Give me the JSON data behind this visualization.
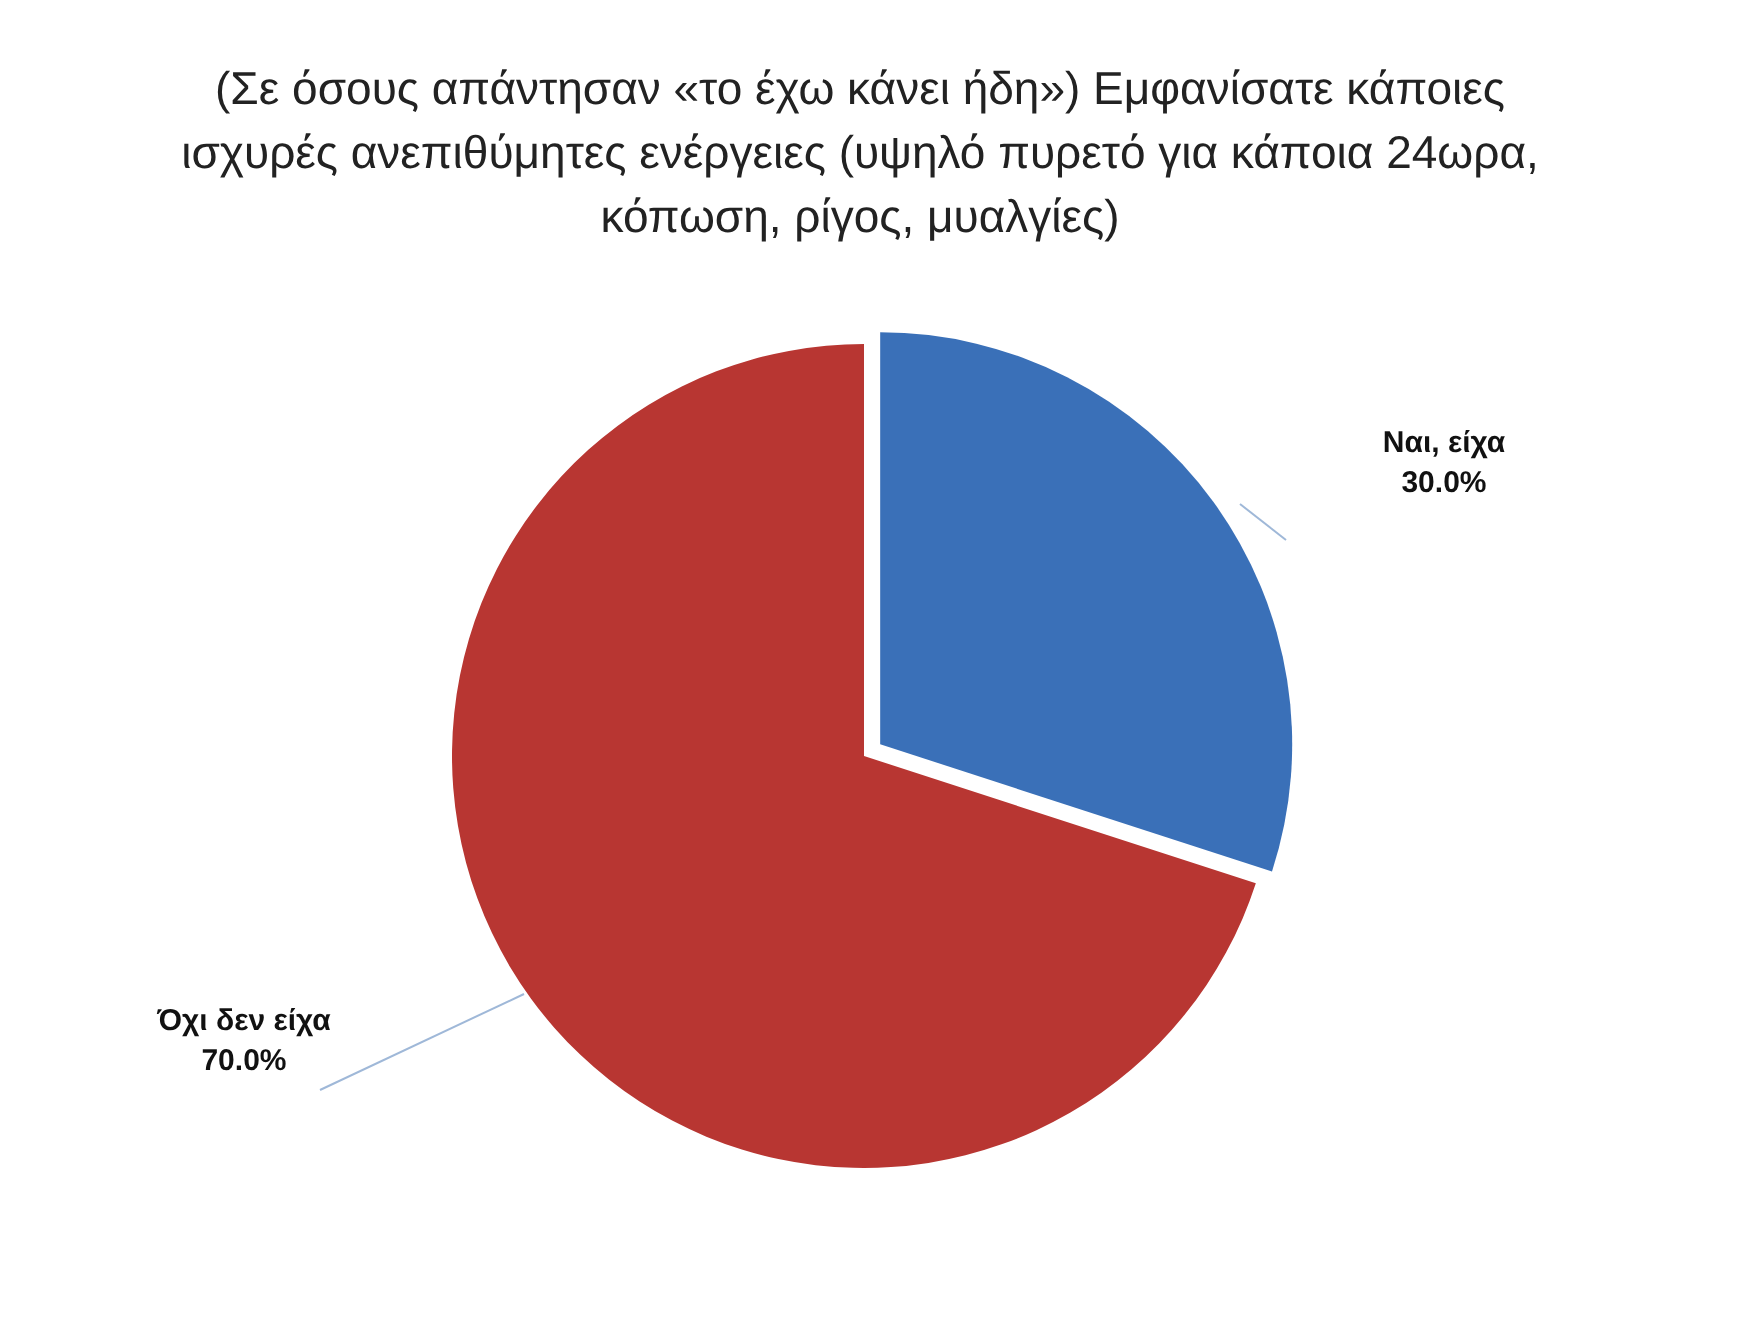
{
  "chart_data": {
    "type": "pie",
    "title": "(Σε όσους απάντησαν «το έχω κάνει ήδη») Εμφανίσατε κάποιες ισχυρές ανεπιθύμητες ενέργειες (υψηλό πυρετό για κάποια 24ωρα, κόπωση, ρίγος, μυαλγίες)",
    "categories": [
      "Ναι, είχα",
      "Όχι δεν είχα"
    ],
    "values": [
      30,
      70
    ],
    "colors": [
      "#3a70b8",
      "#b83632"
    ],
    "value_labels": [
      "30.0%",
      "70.0%"
    ]
  }
}
